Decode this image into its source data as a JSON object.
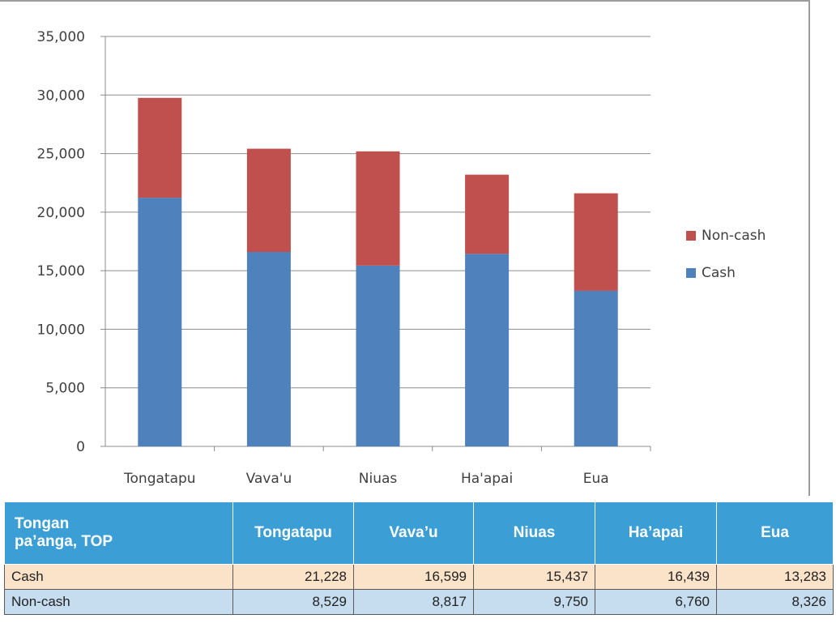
{
  "chart_data": {
    "type": "bar",
    "stacked": true,
    "categories": [
      "Tongatapu",
      "Vava'u",
      "Niuas",
      "Ha'apai",
      "Eua"
    ],
    "series": [
      {
        "name": "Cash",
        "values": [
          21228,
          16599,
          15437,
          16439,
          13283
        ],
        "color": "#4f81bd"
      },
      {
        "name": "Non-cash",
        "values": [
          8529,
          8817,
          9750,
          6760,
          8326
        ],
        "color": "#c0504d"
      }
    ],
    "ylim": [
      0,
      35000
    ],
    "yticks": [
      0,
      5000,
      10000,
      15000,
      20000,
      25000,
      30000,
      35000
    ],
    "ytick_labels": [
      "0",
      "5,000",
      "10,000",
      "15,000",
      "20,000",
      "25,000",
      "30,000",
      "35,000"
    ],
    "grid": true,
    "legend_placement": "right",
    "legend_order": [
      "Non-cash",
      "Cash"
    ]
  },
  "table": {
    "corner_label_line1": "Tongan",
    "corner_label_line2": "pa’anga, TOP",
    "headers": [
      "Tongatapu",
      "Vava’u",
      "Niuas",
      "Ha’apai",
      "Eua"
    ],
    "rows": [
      {
        "label": "Cash",
        "cells": [
          "21,228",
          "16,599",
          "15,437",
          "16,439",
          "13,283"
        ]
      },
      {
        "label": "Non-cash",
        "cells": [
          "8,529",
          "8,817",
          "9,750",
          "6,760",
          "8,326"
        ]
      }
    ]
  }
}
